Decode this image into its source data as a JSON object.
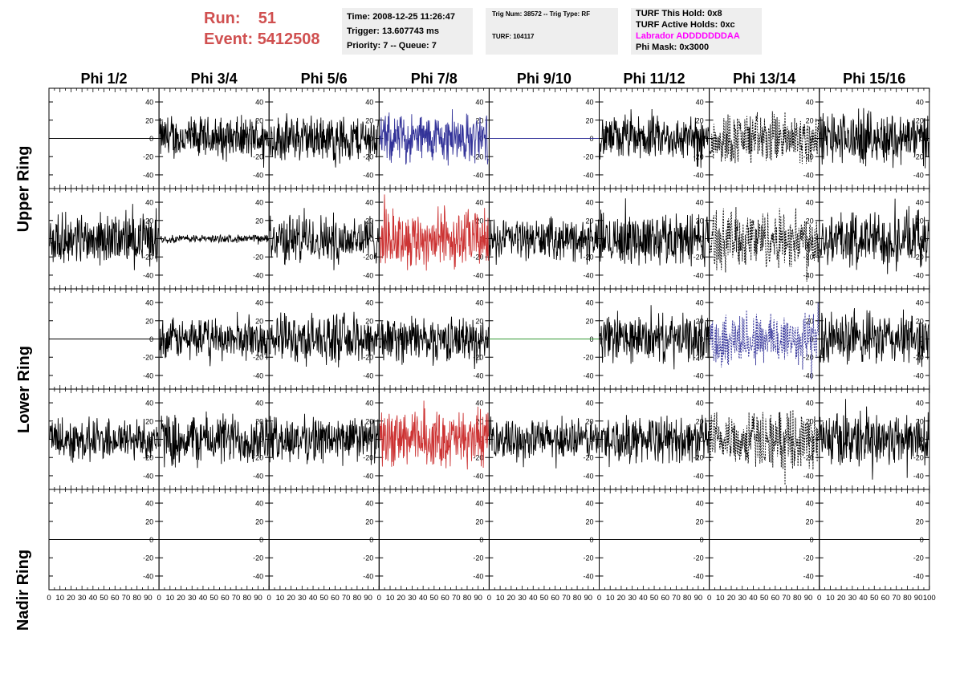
{
  "run_info": {
    "run_label": "Run:",
    "run_value": "51",
    "event_label": "Event:",
    "event_value": "5412508"
  },
  "header_box1": {
    "time": "Time: 2008-12-25 11:26:47",
    "trigger": "Trigger: 13.607743 ms",
    "priority": "Priority: 7 -- Queue: 7"
  },
  "header_box2": {
    "trig": "Trig Num: 38572 -- Trig Type: RF",
    "turf": "TURF: 104117"
  },
  "header_box3": {
    "hold": "TURF This Hold: 0x8",
    "active": "TURF Active Holds: 0xc",
    "labrador": "Labrador ADDDDDDDAA",
    "phimask": "Phi Mask: 0x3000",
    "labrador_color": "#ff00ff"
  },
  "columns": [
    "Phi 1/2",
    "Phi 3/4",
    "Phi 5/6",
    "Phi 7/8",
    "Phi 9/10",
    "Phi 11/12",
    "Phi 13/14",
    "Phi 15/16"
  ],
  "rows": [
    "Upper Ring",
    "Lower Ring",
    "Nadir Ring"
  ],
  "chart_data": {
    "type": "line",
    "x_ticks": [
      "0",
      "10",
      "20",
      "30",
      "40",
      "50",
      "60",
      "70",
      "80",
      "90",
      "100"
    ],
    "y_ticks": [
      "40",
      "20",
      "0",
      "-20",
      "-40"
    ],
    "xlim": [
      0,
      100
    ],
    "ylim": [
      -55,
      55
    ],
    "panels": [
      [
        {
          "style": "flat",
          "color": "#000000"
        },
        {
          "style": "noise",
          "color": "#000000",
          "amp": 28
        },
        {
          "style": "noise",
          "color": "#000000",
          "amp": 30
        },
        {
          "style": "noise",
          "color": "#333399",
          "amp": 32
        },
        {
          "style": "flat",
          "color": "#333399"
        },
        {
          "style": "noise",
          "color": "#000000",
          "amp": 28
        },
        {
          "style": "dashed",
          "color": "#000000",
          "amp": 34
        },
        {
          "style": "noise",
          "color": "#000000",
          "amp": 34
        }
      ],
      [
        {
          "style": "noise",
          "color": "#000000",
          "amp": 32
        },
        {
          "style": "noise",
          "color": "#000000",
          "amp": 5
        },
        {
          "style": "noise",
          "color": "#000000",
          "amp": 32
        },
        {
          "style": "noise",
          "color": "#cc3333",
          "amp": 38
        },
        {
          "style": "noise",
          "color": "#000000",
          "amp": 26
        },
        {
          "style": "noise",
          "color": "#000000",
          "amp": 34
        },
        {
          "style": "dashed",
          "color": "#000000",
          "amp": 38
        },
        {
          "style": "noise",
          "color": "#000000",
          "amp": 36
        }
      ],
      [
        {
          "style": "flat",
          "color": "#000000"
        },
        {
          "style": "noise",
          "color": "#000000",
          "amp": 26
        },
        {
          "style": "noise",
          "color": "#000000",
          "amp": 32
        },
        {
          "style": "noise",
          "color": "#000000",
          "amp": 28
        },
        {
          "style": "flat",
          "color": "#339933"
        },
        {
          "style": "noise",
          "color": "#000000",
          "amp": 30
        },
        {
          "style": "dashed",
          "color": "#333399",
          "amp": 36
        },
        {
          "style": "noise",
          "color": "#000000",
          "amp": 34
        }
      ],
      [
        {
          "style": "noise",
          "color": "#000000",
          "amp": 28
        },
        {
          "style": "noise",
          "color": "#000000",
          "amp": 34
        },
        {
          "style": "noise",
          "color": "#000000",
          "amp": 30
        },
        {
          "style": "noise",
          "color": "#cc3333",
          "amp": 36
        },
        {
          "style": "noise",
          "color": "#000000",
          "amp": 26
        },
        {
          "style": "noise",
          "color": "#000000",
          "amp": 30
        },
        {
          "style": "dashed",
          "color": "#000000",
          "amp": 36
        },
        {
          "style": "noise",
          "color": "#000000",
          "amp": 36
        }
      ],
      [
        {
          "style": "flat",
          "color": "#000000"
        },
        {
          "style": "flat",
          "color": "#000000"
        },
        {
          "style": "flat",
          "color": "#000000"
        },
        {
          "style": "flat",
          "color": "#000000"
        },
        {
          "style": "flat",
          "color": "#000000"
        },
        {
          "style": "flat",
          "color": "#000000"
        },
        {
          "style": "flat",
          "color": "#000000"
        },
        {
          "style": "flat",
          "color": "#000000"
        }
      ]
    ]
  }
}
